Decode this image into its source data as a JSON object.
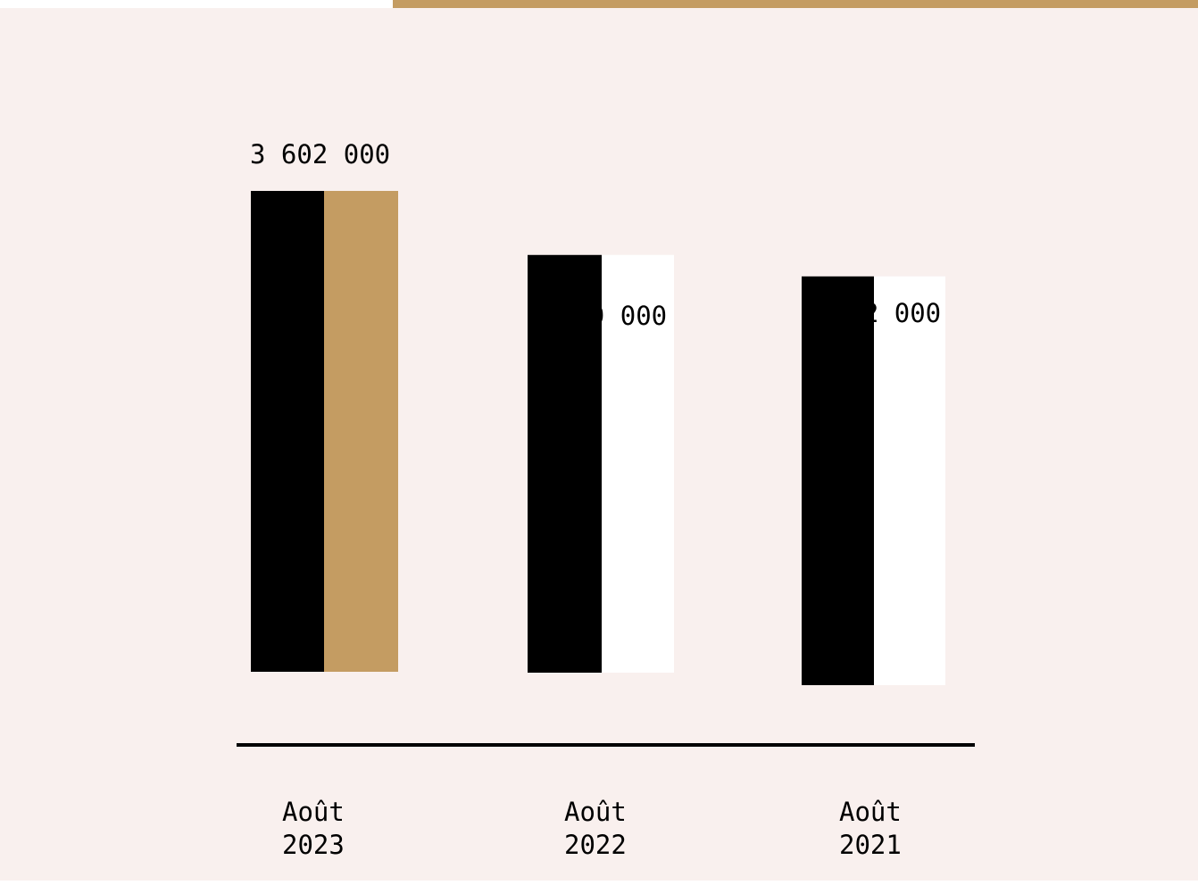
{
  "colors": {
    "panel_background": "#f9f0ee",
    "accent": "#c49c62",
    "bar_dark": "#000000",
    "bar_light": "#ffffff",
    "axis_line": "#000000"
  },
  "chart_data": {
    "type": "bar",
    "categories": [
      [
        "Août",
        "2023"
      ],
      [
        "Août",
        "2022"
      ],
      [
        "Août",
        "2021"
      ]
    ],
    "values": [
      3602000,
      3129000,
      3062000
    ],
    "value_labels": [
      "3 602 000",
      "3 129 000",
      "3 062 000"
    ],
    "highlighted_category_index": 0,
    "title": "",
    "xlabel": "",
    "ylabel": "",
    "grid": false,
    "legend": "none"
  }
}
